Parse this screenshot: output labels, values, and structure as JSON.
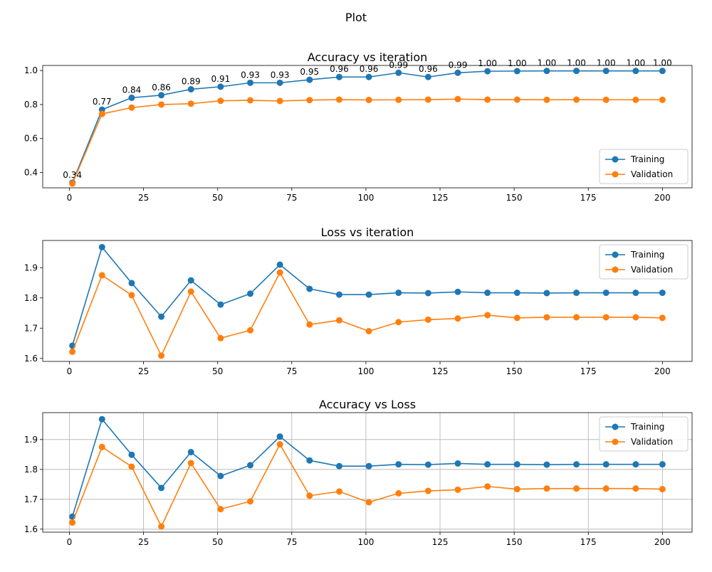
{
  "figure": {
    "suptitle": "Plot"
  },
  "chart_data": [
    {
      "type": "line",
      "title": "Accuracy vs iteration",
      "xlabel": "",
      "ylabel": "",
      "x": [
        1,
        11,
        21,
        31,
        41,
        51,
        61,
        71,
        81,
        91,
        101,
        111,
        121,
        131,
        141,
        151,
        161,
        171,
        181,
        191,
        200
      ],
      "xlim": [
        -9,
        210
      ],
      "ylim": [
        0.31,
        1.03
      ],
      "xticks": [
        0,
        25,
        50,
        75,
        100,
        125,
        150,
        175,
        200
      ],
      "xtick_labels": [
        "0",
        "25",
        "50",
        "75",
        "100",
        "125",
        "150",
        "175",
        "200"
      ],
      "yticks": [
        0.4,
        0.6,
        0.8,
        1.0
      ],
      "ytick_labels": [
        "0.4",
        "0.6",
        "0.8",
        "1.0"
      ],
      "grid": false,
      "legend_position": "lower-right",
      "series": [
        {
          "name": "Training",
          "color": "#1f77b4",
          "values": [
            0.34,
            0.77,
            0.84,
            0.855,
            0.89,
            0.905,
            0.928,
            0.928,
            0.946,
            0.962,
            0.962,
            0.987,
            0.962,
            0.987,
            0.996,
            0.997,
            0.998,
            0.998,
            0.998,
            0.998,
            0.998
          ],
          "data_labels": [
            "0.34",
            "0.77",
            "0.84",
            "0.86",
            "0.89",
            "0.91",
            "0.93",
            "0.93",
            "0.95",
            "0.96",
            "0.96",
            "0.99",
            "0.96",
            "0.99",
            "1.00",
            "1.00",
            "1.00",
            "1.00",
            "1.00",
            "1.00",
            "1.00"
          ]
        },
        {
          "name": "Validation",
          "color": "#ff7f0e",
          "values": [
            0.335,
            0.745,
            0.782,
            0.8,
            0.805,
            0.822,
            0.825,
            0.821,
            0.826,
            0.829,
            0.827,
            0.828,
            0.829,
            0.832,
            0.829,
            0.829,
            0.828,
            0.829,
            0.828,
            0.828,
            0.828
          ]
        }
      ]
    },
    {
      "type": "line",
      "title": "Loss vs iteration",
      "xlabel": "",
      "ylabel": "",
      "x": [
        1,
        11,
        21,
        31,
        41,
        51,
        61,
        71,
        81,
        91,
        101,
        111,
        121,
        131,
        141,
        151,
        161,
        171,
        181,
        191,
        200
      ],
      "xlim": [
        -9,
        210
      ],
      "ylim": [
        1.59,
        1.99
      ],
      "xticks": [
        0,
        25,
        50,
        75,
        100,
        125,
        150,
        175,
        200
      ],
      "xtick_labels": [
        "0",
        "25",
        "50",
        "75",
        "100",
        "125",
        "150",
        "175",
        "200"
      ],
      "yticks": [
        1.6,
        1.7,
        1.8,
        1.9
      ],
      "ytick_labels": [
        "1.6",
        "1.7",
        "1.8",
        "1.9"
      ],
      "grid": false,
      "legend_position": "upper-right",
      "series": [
        {
          "name": "Training",
          "color": "#1f77b4",
          "values": [
            1.642,
            1.968,
            1.849,
            1.738,
            1.858,
            1.778,
            1.814,
            1.91,
            1.83,
            1.811,
            1.811,
            1.817,
            1.816,
            1.82,
            1.817,
            1.817,
            1.816,
            1.817,
            1.817,
            1.817,
            1.817
          ]
        },
        {
          "name": "Validation",
          "color": "#ff7f0e",
          "values": [
            1.622,
            1.875,
            1.809,
            1.609,
            1.821,
            1.667,
            1.693,
            1.884,
            1.712,
            1.726,
            1.69,
            1.72,
            1.728,
            1.732,
            1.743,
            1.734,
            1.736,
            1.736,
            1.736,
            1.736,
            1.734
          ]
        }
      ]
    },
    {
      "type": "line",
      "title": "Accuracy vs Loss",
      "xlabel": "",
      "ylabel": "",
      "x": [
        1,
        11,
        21,
        31,
        41,
        51,
        61,
        71,
        81,
        91,
        101,
        111,
        121,
        131,
        141,
        151,
        161,
        171,
        181,
        191,
        200
      ],
      "xlim": [
        -9,
        210
      ],
      "ylim": [
        1.59,
        1.99
      ],
      "xticks": [
        0,
        25,
        50,
        75,
        100,
        125,
        150,
        175,
        200
      ],
      "xtick_labels": [
        "0",
        "25",
        "50",
        "75",
        "100",
        "125",
        "150",
        "175",
        "200"
      ],
      "yticks": [
        1.6,
        1.7,
        1.8,
        1.9
      ],
      "ytick_labels": [
        "1.6",
        "1.7",
        "1.8",
        "1.9"
      ],
      "grid": true,
      "legend_position": "upper-right",
      "series": [
        {
          "name": "Training",
          "color": "#1f77b4",
          "values": [
            1.642,
            1.968,
            1.849,
            1.738,
            1.858,
            1.778,
            1.814,
            1.91,
            1.83,
            1.811,
            1.811,
            1.817,
            1.816,
            1.82,
            1.817,
            1.817,
            1.816,
            1.817,
            1.817,
            1.817,
            1.817
          ]
        },
        {
          "name": "Validation",
          "color": "#ff7f0e",
          "values": [
            1.622,
            1.875,
            1.809,
            1.609,
            1.821,
            1.667,
            1.693,
            1.884,
            1.712,
            1.726,
            1.69,
            1.72,
            1.728,
            1.732,
            1.743,
            1.734,
            1.736,
            1.736,
            1.736,
            1.736,
            1.734
          ]
        }
      ]
    }
  ]
}
